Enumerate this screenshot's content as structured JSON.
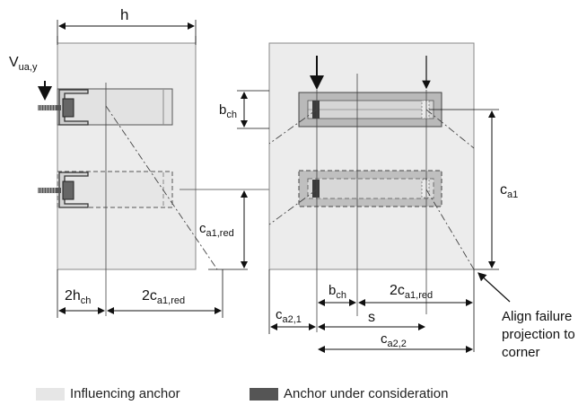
{
  "labels": {
    "h": "h",
    "v_main": "V",
    "v_sub": "ua,y",
    "b_ch_side": "b",
    "b_ch_side_sub": "ch",
    "c_a1_red": "c",
    "c_a1_red_sub": "a1,red",
    "c_a1": "c",
    "c_a1_sub": "a1",
    "two_h_ch_prefix": "2h",
    "two_h_ch_sub": "ch",
    "two_c_left_prefix": "2c",
    "two_c_left_sub": "a1,red",
    "b_ch_bottom": "b",
    "b_ch_bottom_sub": "ch",
    "two_c_right_prefix": "2c",
    "two_c_right_sub": "a1,red",
    "c_a21": "c",
    "c_a21_sub": "a2,1",
    "s": "s",
    "c_a22": "c",
    "c_a22_sub": "a2,2",
    "annotation_line1": "Align failure",
    "annotation_line2": "projection to",
    "annotation_line3": "corner"
  },
  "legend": {
    "influencing": "Influencing anchor",
    "consideration": "Anchor under consideration",
    "influencing_color": "#e6e6e6",
    "consideration_color": "#555555"
  }
}
